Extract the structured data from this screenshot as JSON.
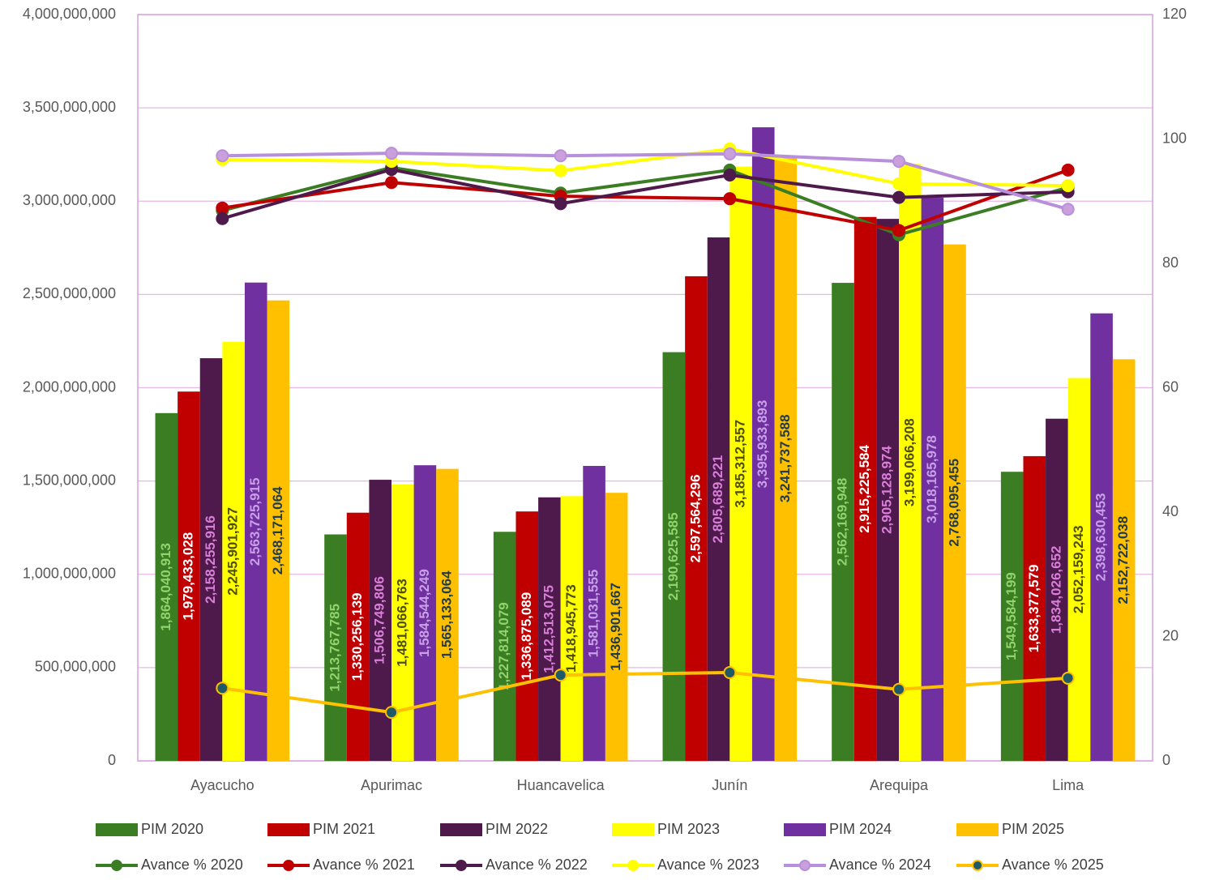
{
  "chart_data": {
    "type": "combo",
    "categories": [
      "Ayacucho",
      "Apurimac",
      "Huancavelica",
      "Junín",
      "Arequipa",
      "Lima"
    ],
    "ylim": [
      0,
      4000000000
    ],
    "yticks": [
      0,
      {
        "value": 500000000,
        "label": "500,000,000"
      },
      {
        "value": 1000000000,
        "label": "1,000,000,000"
      },
      {
        "value": 1500000000,
        "label": "1,500,000,000"
      },
      {
        "value": 2000000000,
        "label": "2,000,000,000"
      },
      {
        "value": 2500000000,
        "label": "2,500,000,000"
      },
      {
        "value": 3000000000,
        "label": "3,000,000,000"
      },
      {
        "value": 3500000000,
        "label": "3,500,000,000"
      },
      {
        "value": 4000000000,
        "label": "4,000,000,000"
      }
    ],
    "y2lim": [
      0,
      120
    ],
    "y2ticks": [
      0,
      20,
      40,
      60,
      80,
      100,
      120
    ],
    "grid": true,
    "series": [
      {
        "name": "PIM 2020",
        "type": "bar",
        "color": "#3a7d22",
        "label_color": "#92d36e",
        "values": [
          1864040913,
          1213767785,
          1227814079,
          2190625585,
          2562169948,
          1549584199
        ],
        "value_labels": [
          "1,864,040,913",
          "1,213,767,785",
          "1,227,814,079",
          "2,190,625,585",
          "2,562,169,948",
          "1,549,584,199"
        ]
      },
      {
        "name": "PIM 2021",
        "type": "bar",
        "color": "#c00000",
        "label_color": "#ffffff",
        "values": [
          1979433028,
          1330256139,
          1336875089,
          2597564296,
          2915225584,
          1633377579
        ],
        "value_labels": [
          "1,979,433,028",
          "1,330,256,139",
          "1,336,875,089",
          "2,597,564,296",
          "2,915,225,584",
          "1,633,377,579"
        ]
      },
      {
        "name": "PIM 2022",
        "type": "bar",
        "color": "#4e1a4b",
        "label_color": "#d97fd9",
        "values": [
          2158255916,
          1506749806,
          1412513075,
          2805689221,
          2905128974,
          1834026652
        ],
        "value_labels": [
          "2,158,255,916",
          "1,506,749,806",
          "1,412,513,075",
          "2,805,689,221",
          "2,905,128,974",
          "1,834,026,652"
        ]
      },
      {
        "name": "PIM 2023",
        "type": "bar",
        "color": "#ffff00",
        "label_color": "#4d4d00",
        "values": [
          2245901927,
          1481066763,
          1418945773,
          3185312557,
          3199066208,
          2052159243
        ],
        "value_labels": [
          "2,245,901,927",
          "1,481,066,763",
          "1,418,945,773",
          "3,185,312,557",
          "3,199,066,208",
          "2,052,159,243"
        ]
      },
      {
        "name": "PIM 2024",
        "type": "bar",
        "color": "#7030a0",
        "label_color": "#c9a0e8",
        "values": [
          2563725915,
          1584544249,
          1581031555,
          3395933893,
          3018165978,
          2398630453
        ],
        "value_labels": [
          "2,563,725,915",
          "1,584,544,249",
          "1,581,031,555",
          "3,395,933,893",
          "3,018,165,978",
          "2,398,630,453"
        ]
      },
      {
        "name": "PIM 2025",
        "type": "bar",
        "color": "#ffc000",
        "label_color": "#1f3b4d",
        "values": [
          2468171064,
          1565133064,
          1436901667,
          3241737588,
          2768095455,
          2152722038
        ],
        "value_labels": [
          "2,468,171,064",
          "1,565,133,064",
          "1,436,901,667",
          "3,241,737,588",
          "2,768,095,455",
          "2,152,722,038"
        ]
      },
      {
        "name": "Avance % 2020",
        "type": "line",
        "axis": "y2",
        "color": "#3a7d22",
        "marker_color": "#3a7d22",
        "values": [
          88.5,
          95.4,
          91.3,
          95,
          84.6,
          92.2
        ]
      },
      {
        "name": "Avance % 2021",
        "type": "line",
        "axis": "y2",
        "color": "#c00000",
        "marker_color": "#c00000",
        "values": [
          88.9,
          93,
          90.8,
          90.4,
          85.3,
          95
        ]
      },
      {
        "name": "Avance % 2022",
        "type": "line",
        "axis": "y2",
        "color": "#4e1a4b",
        "marker_color": "#4e1a4b",
        "values": [
          87.2,
          95.1,
          89.6,
          94.2,
          90.6,
          91.5
        ]
      },
      {
        "name": "Avance % 2023",
        "type": "line",
        "axis": "y2",
        "color": "#ffff00",
        "marker_color": "#ffff00",
        "values": [
          96.7,
          96.4,
          94.9,
          98.4,
          92.8,
          92.5
        ]
      },
      {
        "name": "Avance % 2024",
        "type": "line",
        "axis": "y2",
        "color": "#b88fdb",
        "marker_color": "#c9a0dc",
        "values": [
          97.3,
          97.7,
          97.3,
          97.6,
          96.4,
          88.7
        ]
      },
      {
        "name": "Avance % 2025",
        "type": "line",
        "axis": "y2",
        "color": "#ffc000",
        "marker_color": "#1f5a66",
        "values": [
          11.7,
          7.8,
          13.8,
          14.2,
          11.5,
          13.3
        ]
      }
    ]
  }
}
